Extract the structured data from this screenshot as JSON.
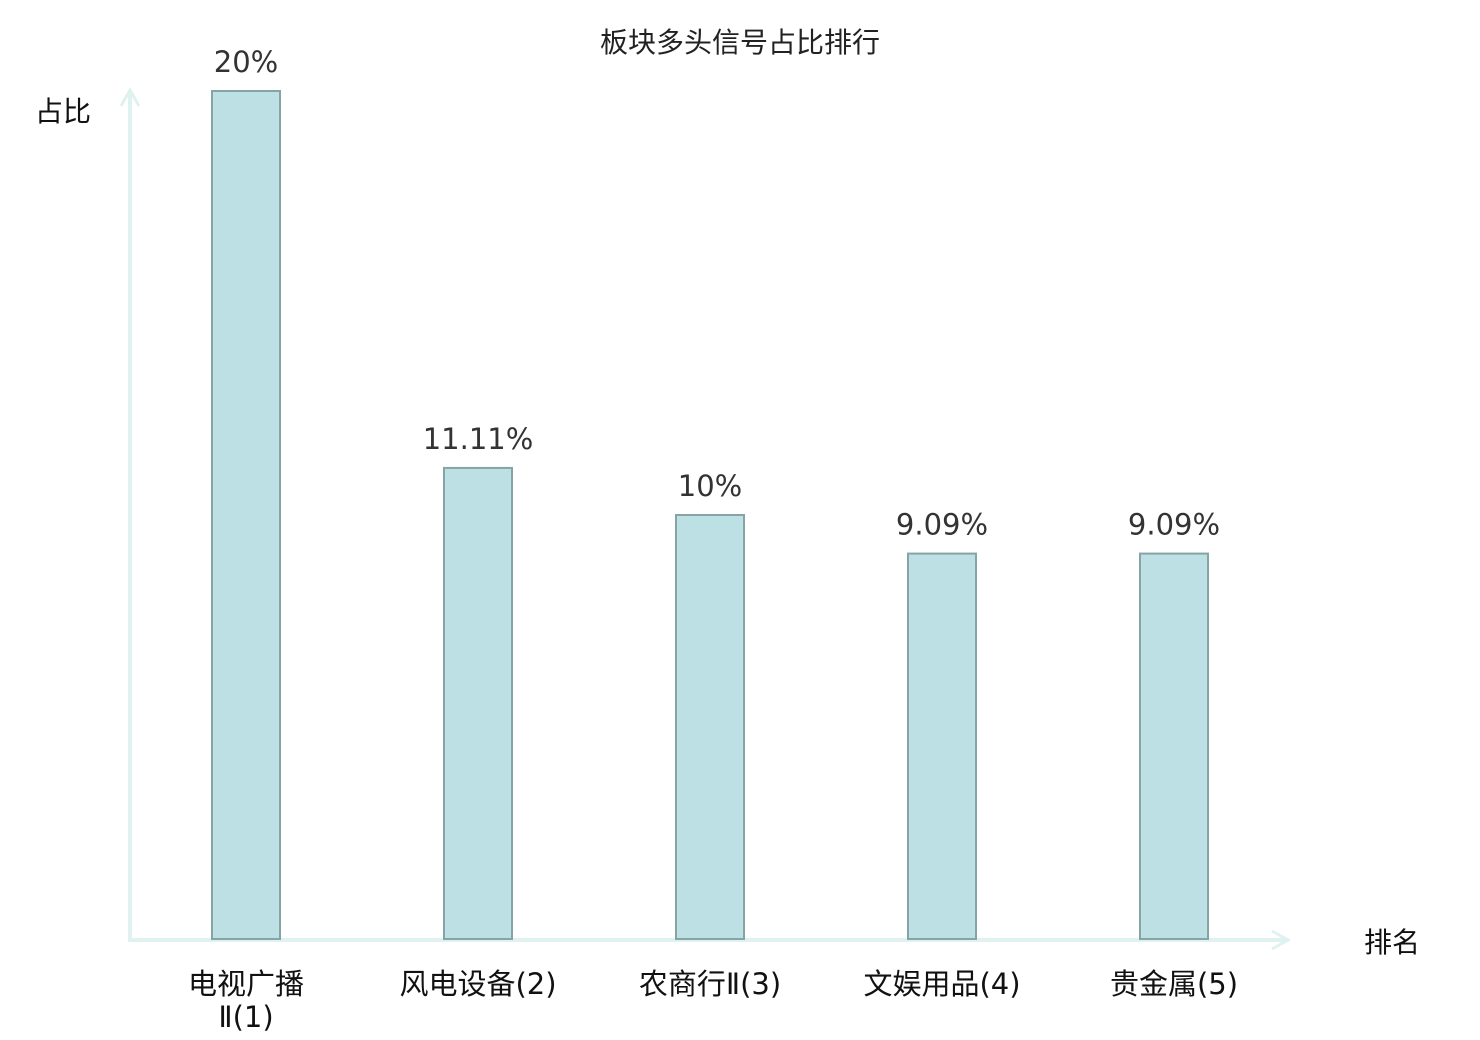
{
  "chart_data": {
    "type": "bar",
    "title": "板块多头信号占比排行",
    "xlabel": "排名",
    "ylabel": "占比",
    "categories": [
      "电视广播Ⅱ(1)",
      "风电设备(2)",
      "农商行Ⅱ(3)",
      "文娱用品(4)",
      "贵金属(5)"
    ],
    "category_lines": [
      [
        "电视广播",
        "Ⅱ(1)"
      ],
      [
        "风电设备(2)"
      ],
      [
        "农商行Ⅱ(3)"
      ],
      [
        "文娱用品(4)"
      ],
      [
        "贵金属(5)"
      ]
    ],
    "values": [
      20,
      11.11,
      10,
      9.09,
      9.09
    ],
    "data_labels": [
      "20%",
      "11.11%",
      "10%",
      "9.09%",
      "9.09%"
    ],
    "unit": "%",
    "ylim": [
      0,
      20
    ],
    "grid": false,
    "highlight_index": 0,
    "colors": {
      "bar_fill": "#bce0e3",
      "bar_stroke": "#86a3a5",
      "axis": "#dff2f0",
      "highlight_label": "#ee1111",
      "label": "#111111"
    }
  }
}
